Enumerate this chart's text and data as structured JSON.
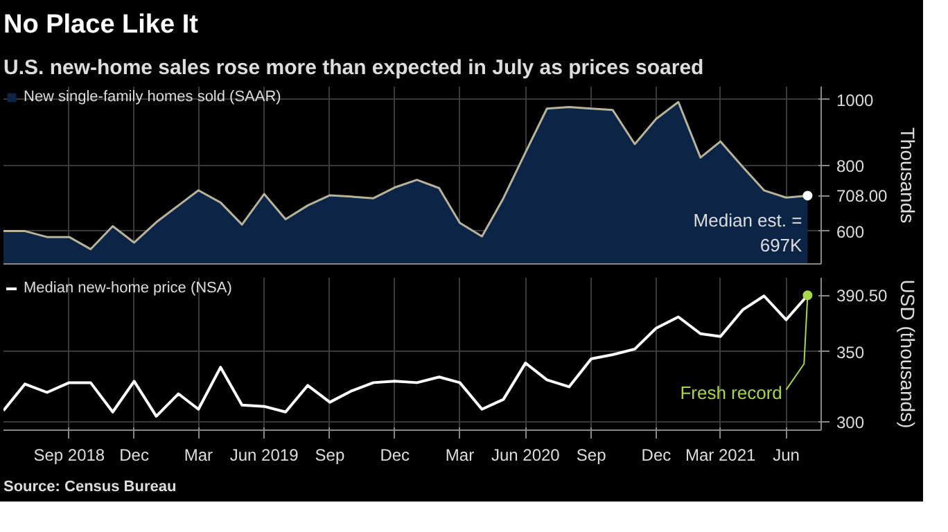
{
  "chart_data": [
    {
      "type": "area",
      "title": "No Place Like It",
      "subtitle": "U.S. new-home sales rose more than expected in July as prices soared",
      "ylabel": "Thousands",
      "x": [
        "2018-06",
        "2018-07",
        "2018-08",
        "2018-09",
        "2018-10",
        "2018-11",
        "2018-12",
        "2019-01",
        "2019-02",
        "2019-03",
        "2019-04",
        "2019-05",
        "2019-06",
        "2019-07",
        "2019-08",
        "2019-09",
        "2019-10",
        "2019-11",
        "2019-12",
        "2020-01",
        "2020-02",
        "2020-03",
        "2020-04",
        "2020-05",
        "2020-06",
        "2020-07",
        "2020-08",
        "2020-09",
        "2020-10",
        "2020-11",
        "2020-12",
        "2021-01",
        "2021-02",
        "2021-03",
        "2021-04",
        "2021-05",
        "2021-06",
        "2021-07"
      ],
      "series": [
        {
          "name": "New single-family homes sold (SAAR)",
          "color": "#0c2445",
          "values": [
            600,
            600,
            582,
            582,
            545,
            615,
            565,
            627,
            678,
            724,
            687,
            620,
            713,
            636,
            678,
            709,
            705,
            700,
            733,
            756,
            731,
            625,
            584,
            700,
            840,
            973,
            978,
            973,
            969,
            865,
            942,
            993,
            824,
            873,
            796,
            724,
            702,
            708
          ],
          "value_labels": [
            null,
            null,
            null,
            null,
            null,
            null,
            null,
            null,
            null,
            null,
            null,
            null,
            null,
            null,
            null,
            null,
            null,
            null,
            null,
            null,
            null,
            null,
            null,
            null,
            null,
            null,
            null,
            null,
            null,
            null,
            null,
            null,
            null,
            null,
            null,
            null,
            null,
            "708.00"
          ]
        }
      ],
      "xlim": [
        "2018-06",
        "2021-07-20"
      ],
      "ylim": [
        500,
        1040
      ],
      "yticks": [
        600,
        800,
        1000
      ],
      "xticks": [
        {
          "value": "2018-09",
          "label": null
        },
        {
          "value": "2018-12",
          "label": null
        },
        {
          "value": "2019-03",
          "label": null
        },
        {
          "value": "2019-06",
          "label": null
        },
        {
          "value": "2019-09",
          "label": null
        },
        {
          "value": "2019-12",
          "label": null
        },
        {
          "value": "2020-03",
          "label": null
        },
        {
          "value": "2020-06",
          "label": null
        },
        {
          "value": "2020-09",
          "label": null
        },
        {
          "value": "2020-12",
          "label": null
        },
        {
          "value": "2021-03",
          "label": null
        },
        {
          "value": "2021-06",
          "label": null
        }
      ],
      "tick_labels": "y",
      "grid": true,
      "legend": "top left",
      "annotations": [
        "Median est. =\n697K"
      ]
    },
    {
      "type": "line",
      "ylabel": "USD (thousands)",
      "x": [
        "2018-06",
        "2018-07",
        "2018-08",
        "2018-09",
        "2018-10",
        "2018-11",
        "2018-12",
        "2019-01",
        "2019-02",
        "2019-03",
        "2019-04",
        "2019-05",
        "2019-06",
        "2019-07",
        "2019-08",
        "2019-09",
        "2019-10",
        "2019-11",
        "2019-12",
        "2020-01",
        "2020-02",
        "2020-03",
        "2020-04",
        "2020-05",
        "2020-06",
        "2020-07",
        "2020-08",
        "2020-09",
        "2020-10",
        "2020-11",
        "2020-12",
        "2021-01",
        "2021-02",
        "2021-03",
        "2021-04",
        "2021-05",
        "2021-06",
        "2021-07"
      ],
      "series": [
        {
          "name": "Median new-home price (NSA)",
          "color": "#ffffff",
          "values": [
            308,
            327,
            321,
            328,
            328,
            307,
            329,
            304,
            320,
            309,
            339,
            312,
            311,
            307,
            326,
            314,
            322,
            328,
            329,
            328,
            332,
            328,
            309,
            316,
            342,
            330,
            325,
            345,
            348,
            352,
            367,
            375,
            363,
            361,
            380,
            390,
            373,
            390.5
          ],
          "value_labels": [
            null,
            null,
            null,
            null,
            null,
            null,
            null,
            null,
            null,
            null,
            null,
            null,
            null,
            null,
            null,
            null,
            null,
            null,
            null,
            null,
            null,
            null,
            null,
            null,
            null,
            null,
            null,
            null,
            null,
            null,
            null,
            null,
            null,
            null,
            null,
            null,
            null,
            "390.50"
          ]
        }
      ],
      "xlim": [
        "2018-06",
        "2021-07-20"
      ],
      "ylim": [
        294,
        403
      ],
      "yticks": [
        300,
        350
      ],
      "xticks": [
        {
          "value": "2018-09",
          "label": "Sep\n2018"
        },
        {
          "value": "2018-12",
          "label": "Dec"
        },
        {
          "value": "2019-03",
          "label": "Mar"
        },
        {
          "value": "2019-06",
          "label": "Jun\n2019"
        },
        {
          "value": "2019-09",
          "label": "Sep"
        },
        {
          "value": "2019-12",
          "label": "Dec"
        },
        {
          "value": "2020-03",
          "label": "Mar"
        },
        {
          "value": "2020-06",
          "label": "Jun\n2020"
        },
        {
          "value": "2020-09",
          "label": "Sep"
        },
        {
          "value": "2020-12",
          "label": "Dec"
        },
        {
          "value": "2021-03",
          "label": "Mar\n2021"
        },
        {
          "value": "2021-06",
          "label": "Jun"
        }
      ],
      "grid": true,
      "legend": "top left",
      "line_style": "solid",
      "annotations": [
        {
          "text": "Fresh record",
          "x": "2021-07",
          "y": 390.5
        },
        "Source: Census Bureau"
      ]
    }
  ]
}
